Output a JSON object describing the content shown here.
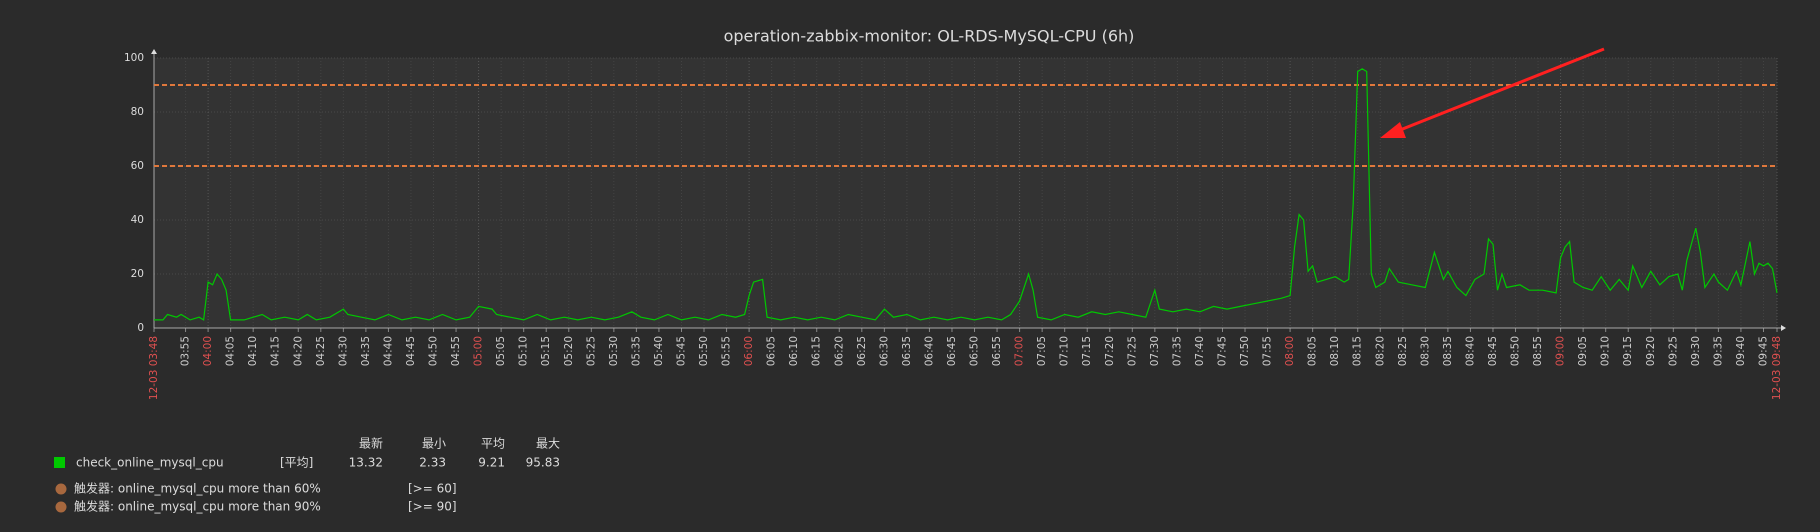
{
  "chart_data": {
    "type": "line",
    "title": "operation-zabbix-monitor: OL-RDS-MySQL-CPU (6h)",
    "ylim": [
      0,
      100
    ],
    "yticks": [
      0,
      20,
      40,
      60,
      80,
      100
    ],
    "grid": true,
    "xticks": [
      "12-03 03:48",
      "03:55",
      "04:00",
      "04:05",
      "04:10",
      "04:15",
      "04:20",
      "04:25",
      "04:30",
      "04:35",
      "04:40",
      "04:45",
      "04:50",
      "04:55",
      "05:00",
      "05:05",
      "05:10",
      "05:15",
      "05:20",
      "05:25",
      "05:30",
      "05:35",
      "05:40",
      "05:45",
      "05:50",
      "05:55",
      "06:00",
      "06:05",
      "06:10",
      "06:15",
      "06:20",
      "06:25",
      "06:30",
      "06:35",
      "06:40",
      "06:45",
      "06:50",
      "06:55",
      "07:00",
      "07:05",
      "07:10",
      "07:15",
      "07:20",
      "07:25",
      "07:30",
      "07:35",
      "07:40",
      "07:45",
      "07:50",
      "07:55",
      "08:00",
      "08:05",
      "08:10",
      "08:15",
      "08:20",
      "08:25",
      "08:30",
      "08:35",
      "08:40",
      "08:45",
      "08:50",
      "08:55",
      "09:00",
      "09:05",
      "09:10",
      "09:15",
      "09:20",
      "09:25",
      "09:30",
      "09:35",
      "09:40",
      "09:45",
      "12-03 09:48"
    ],
    "x": [
      "03:48",
      "03:50",
      "03:51",
      "03:53",
      "03:54",
      "03:56",
      "03:58",
      "03:59",
      "04:00",
      "04:01",
      "04:02",
      "04:03",
      "04:04",
      "04:05",
      "04:08",
      "04:10",
      "04:12",
      "04:14",
      "04:17",
      "04:20",
      "04:22",
      "04:24",
      "04:27",
      "04:30",
      "04:31",
      "04:34",
      "04:37",
      "04:40",
      "04:43",
      "04:46",
      "04:49",
      "04:52",
      "04:55",
      "04:58",
      "05:00",
      "05:03",
      "05:04",
      "05:07",
      "05:10",
      "05:13",
      "05:16",
      "05:19",
      "05:22",
      "05:25",
      "05:28",
      "05:31",
      "05:34",
      "05:36",
      "05:39",
      "05:42",
      "05:45",
      "05:48",
      "05:51",
      "05:54",
      "05:57",
      "05:59",
      "06:00",
      "06:01",
      "06:03",
      "06:04",
      "06:07",
      "06:10",
      "06:13",
      "06:16",
      "06:19",
      "06:22",
      "06:25",
      "06:28",
      "06:30",
      "06:32",
      "06:35",
      "06:38",
      "06:41",
      "06:44",
      "06:47",
      "06:50",
      "06:53",
      "06:56",
      "06:58",
      "07:00",
      "07:02",
      "07:03",
      "07:04",
      "07:07",
      "07:10",
      "07:13",
      "07:16",
      "07:19",
      "07:22",
      "07:25",
      "07:28",
      "07:30",
      "07:31",
      "07:34",
      "07:37",
      "07:40",
      "07:43",
      "07:46",
      "07:49",
      "07:52",
      "07:55",
      "07:58",
      "08:00",
      "08:01",
      "08:02",
      "08:03",
      "08:04",
      "08:05",
      "08:06",
      "08:08",
      "08:10",
      "08:12",
      "08:13",
      "08:14",
      "08:15",
      "08:16",
      "08:17",
      "08:18",
      "08:19",
      "08:21",
      "08:22",
      "08:24",
      "08:27",
      "08:30",
      "08:32",
      "08:34",
      "08:35",
      "08:37",
      "08:39",
      "08:41",
      "08:43",
      "08:44",
      "08:45",
      "08:46",
      "08:47",
      "08:48",
      "08:51",
      "08:53",
      "08:56",
      "08:59",
      "09:00",
      "09:01",
      "09:02",
      "09:03",
      "09:05",
      "09:07",
      "09:09",
      "09:11",
      "09:13",
      "09:15",
      "09:16",
      "09:18",
      "09:20",
      "09:22",
      "09:24",
      "09:26",
      "09:27",
      "09:28",
      "09:30",
      "09:31",
      "09:32",
      "09:34",
      "09:35",
      "09:37",
      "09:39",
      "09:40",
      "09:42",
      "09:43",
      "09:44",
      "09:45",
      "09:46",
      "09:47",
      "09:48"
    ],
    "series": [
      {
        "name": "check_online_mysql_cpu",
        "color": "#00c800",
        "values": [
          3,
          3,
          5,
          4,
          5,
          3,
          4,
          3,
          17,
          16,
          20,
          18,
          14,
          3,
          3,
          4,
          5,
          3,
          4,
          3,
          5,
          3,
          4,
          7,
          5,
          4,
          3,
          5,
          3,
          4,
          3,
          5,
          3,
          4,
          8,
          7,
          5,
          4,
          3,
          5,
          3,
          4,
          3,
          4,
          3,
          4,
          6,
          4,
          3,
          5,
          3,
          4,
          3,
          5,
          4,
          5,
          12,
          17,
          18,
          4,
          3,
          4,
          3,
          4,
          3,
          5,
          4,
          3,
          7,
          4,
          5,
          3,
          4,
          3,
          4,
          3,
          4,
          3,
          5,
          10,
          20,
          14,
          4,
          3,
          5,
          4,
          6,
          5,
          6,
          5,
          4,
          14,
          7,
          6,
          7,
          6,
          8,
          7,
          8,
          9,
          10,
          11,
          12,
          30,
          42,
          40,
          21,
          23,
          17,
          18,
          19,
          17,
          18,
          46,
          95,
          96,
          95,
          20,
          15,
          17,
          22,
          17,
          16,
          15,
          28,
          18,
          21,
          15,
          12,
          18,
          20,
          33,
          31,
          14,
          20,
          15,
          16,
          14,
          14,
          13,
          26,
          30,
          32,
          17,
          15,
          14,
          19,
          14,
          18,
          14,
          23,
          15,
          21,
          16,
          19,
          20,
          14,
          25,
          37,
          28,
          15,
          20,
          17,
          14,
          21,
          16,
          32,
          20,
          24,
          23,
          24,
          22,
          13
        ],
        "function": "[平均]",
        "stats": [
          13.32,
          2.33,
          9.21,
          95.83
        ]
      }
    ],
    "stat_headers": [
      "最新",
      "最小",
      "平均",
      "最大"
    ],
    "triggers": [
      {
        "label": "触发器: online_mysql_cpu  more than 60%",
        "condition": "[>= 60]",
        "value": 60,
        "color": "#e0783c"
      },
      {
        "label": "触发器: online_mysql_cpu more than 90%",
        "condition": "[>= 90]",
        "value": 90,
        "color": "#e0783c"
      }
    ]
  }
}
